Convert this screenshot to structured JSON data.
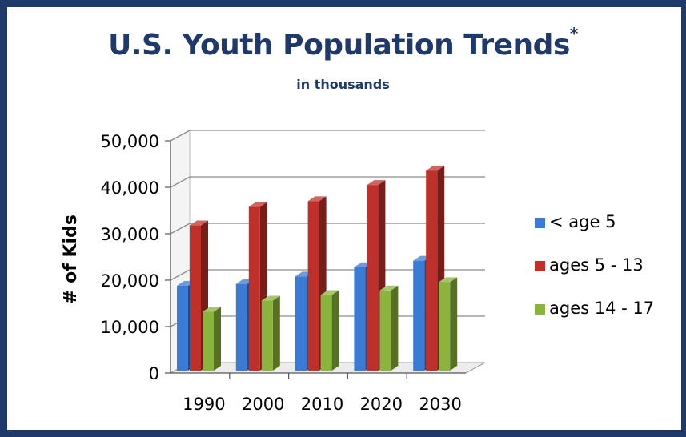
{
  "header": {
    "title": "U.S. Youth Population Trends",
    "title_mark": "*",
    "subtitle": "in thousands"
  },
  "colors": {
    "frame": "#1f3a6a",
    "title": "#1f3a6a",
    "series": [
      "#3a7bd5",
      "#c0302a",
      "#8ab43c"
    ]
  },
  "chart_data": {
    "type": "bar",
    "title": "U.S. Youth Population Trends*",
    "subtitle": "in thousands",
    "xlabel": "",
    "ylabel": "# of Kids",
    "categories": [
      "1990",
      "2000",
      "2010",
      "2020",
      "2030"
    ],
    "series": [
      {
        "name": "<  age 5",
        "values": [
          18800,
          19200,
          20800,
          22800,
          24200
        ]
      },
      {
        "name": "ages 5 - 13",
        "values": [
          31800,
          35800,
          37000,
          40500,
          43600
        ]
      },
      {
        "name": "ages 14 - 17",
        "values": [
          13200,
          15600,
          16800,
          17800,
          19600
        ]
      }
    ],
    "ylim": [
      0,
      50000
    ],
    "yticks": [
      "0",
      "10,000",
      "20,000",
      "30,000",
      "40,000",
      "50,000"
    ],
    "grid": true,
    "legend": "right",
    "style": "3d-clustered-column"
  }
}
